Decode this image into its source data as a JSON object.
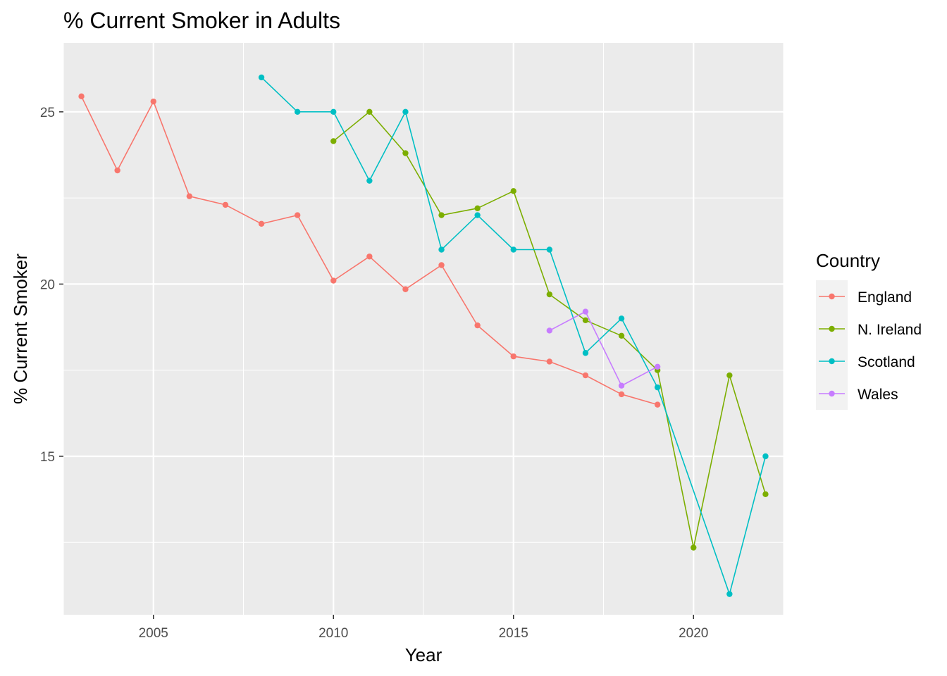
{
  "chart_data": {
    "type": "line",
    "title": "% Current Smoker in Adults",
    "xlabel": "Year",
    "ylabel": "% Current Smoker",
    "xlim": [
      2002.5,
      2022.5
    ],
    "ylim": [
      10.4,
      27.0
    ],
    "x_major_ticks": [
      2005,
      2010,
      2015,
      2020
    ],
    "x_minor_ticks": [
      2002.5,
      2007.5,
      2012.5,
      2017.5,
      2022.5
    ],
    "y_major_ticks": [
      15,
      20,
      25
    ],
    "y_minor_ticks": [
      12.5,
      17.5,
      22.5
    ],
    "x_tick_labels": [
      "2005",
      "2010",
      "2015",
      "2020"
    ],
    "y_tick_labels": [
      "15",
      "20",
      "25"
    ],
    "grid": true,
    "panel_background": "#ebebeb",
    "legend": {
      "title": "Country",
      "position": "right"
    },
    "series": [
      {
        "name": "England",
        "color": "#F8766D",
        "points": [
          [
            2003,
            25.45
          ],
          [
            2004,
            23.3
          ],
          [
            2005,
            25.3
          ],
          [
            2006,
            22.55
          ],
          [
            2007,
            22.3
          ],
          [
            2008,
            21.75
          ],
          [
            2009,
            22.0
          ],
          [
            2010,
            20.1
          ],
          [
            2011,
            20.8
          ],
          [
            2012,
            19.85
          ],
          [
            2013,
            20.55
          ],
          [
            2014,
            18.8
          ],
          [
            2015,
            17.9
          ],
          [
            2016,
            17.75
          ],
          [
            2017,
            17.35
          ],
          [
            2018,
            16.8
          ],
          [
            2019,
            16.5
          ]
        ]
      },
      {
        "name": "N. Ireland",
        "color": "#7CAE00",
        "points": [
          [
            2010,
            24.15
          ],
          [
            2011,
            25.0
          ],
          [
            2012,
            23.8
          ],
          [
            2013,
            22.0
          ],
          [
            2014,
            22.2
          ],
          [
            2015,
            22.7
          ],
          [
            2016,
            19.7
          ],
          [
            2017,
            18.95
          ],
          [
            2018,
            18.5
          ],
          [
            2019,
            17.5
          ],
          [
            2020,
            12.35
          ],
          [
            2021,
            17.35
          ],
          [
            2022,
            13.9
          ]
        ]
      },
      {
        "name": "Scotland",
        "color": "#00BFC4",
        "points": [
          [
            2008,
            26.0
          ],
          [
            2009,
            25.0
          ],
          [
            2010,
            25.0
          ],
          [
            2011,
            23.0
          ],
          [
            2012,
            25.0
          ],
          [
            2013,
            21.0
          ],
          [
            2014,
            22.0
          ],
          [
            2015,
            21.0
          ],
          [
            2016,
            21.0
          ],
          [
            2017,
            18.0
          ],
          [
            2018,
            19.0
          ],
          [
            2019,
            17.0
          ],
          [
            2021,
            11.0
          ],
          [
            2022,
            15.0
          ]
        ]
      },
      {
        "name": "Wales",
        "color": "#C77CFF",
        "points": [
          [
            2016,
            18.65
          ],
          [
            2017,
            19.2
          ],
          [
            2018,
            17.05
          ],
          [
            2019,
            17.6
          ]
        ]
      }
    ]
  }
}
